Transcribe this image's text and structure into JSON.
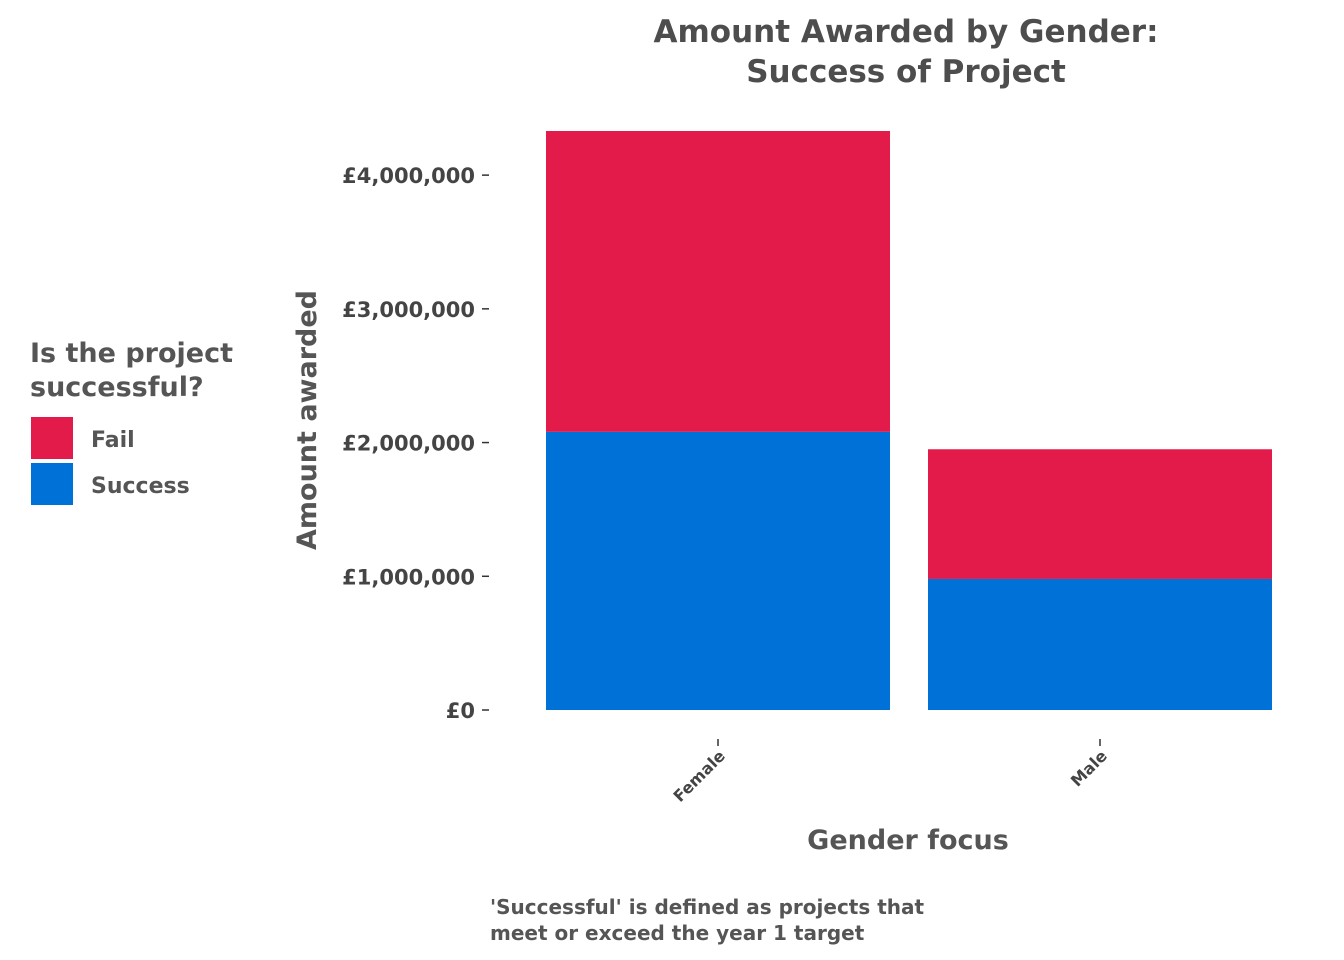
{
  "chart_data": {
    "type": "bar",
    "stacked": true,
    "title_lines": [
      "Amount Awarded by Gender:",
      "Success of Project"
    ],
    "xlabel": "Gender focus",
    "ylabel": "Amount awarded",
    "categories": [
      "Female",
      "Male"
    ],
    "series": [
      {
        "name": "Success",
        "values": [
          2080000,
          980000
        ],
        "color": "#0071D6"
      },
      {
        "name": "Fail",
        "values": [
          2250000,
          970000
        ],
        "color": "#E21B4B"
      }
    ],
    "ylim": [
      0,
      4330000
    ],
    "yticks": [
      0,
      1000000,
      2000000,
      3000000,
      4000000
    ],
    "ytick_labels": [
      "£0",
      "£1,000,000",
      "£2,000,000",
      "£3,000,000",
      "£4,000,000"
    ],
    "grid": false,
    "legend": {
      "title_lines": [
        "Is the project",
        "successful?"
      ],
      "placement": "left",
      "entries": [
        {
          "label": "Fail",
          "color": "#E21B4B"
        },
        {
          "label": "Success",
          "color": "#0071D6"
        }
      ]
    },
    "caption_lines": [
      "'Successful' is defined as projects that",
      "meet or exceed the year 1 target"
    ]
  }
}
